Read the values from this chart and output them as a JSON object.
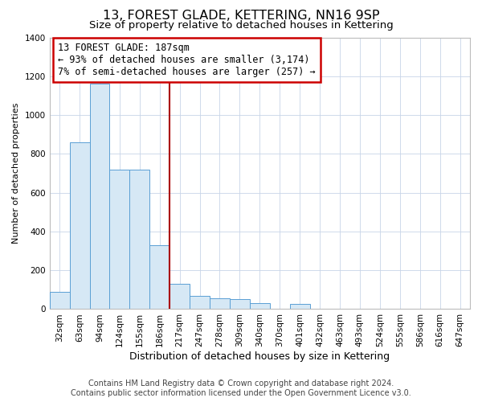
{
  "title": "13, FOREST GLADE, KETTERING, NN16 9SP",
  "subtitle": "Size of property relative to detached houses in Kettering",
  "xlabel": "Distribution of detached houses by size in Kettering",
  "ylabel": "Number of detached properties",
  "categories": [
    "32sqm",
    "63sqm",
    "94sqm",
    "124sqm",
    "155sqm",
    "186sqm",
    "217sqm",
    "247sqm",
    "278sqm",
    "309sqm",
    "340sqm",
    "370sqm",
    "401sqm",
    "432sqm",
    "463sqm",
    "493sqm",
    "524sqm",
    "555sqm",
    "586sqm",
    "616sqm",
    "647sqm"
  ],
  "values": [
    90,
    860,
    1160,
    720,
    720,
    330,
    130,
    70,
    55,
    50,
    30,
    0,
    25,
    0,
    0,
    0,
    0,
    0,
    0,
    0,
    0
  ],
  "bar_color": "#d6e8f5",
  "bar_edge_color": "#5a9fd4",
  "vline_color": "#aa0000",
  "annotation_text": "13 FOREST GLADE: 187sqm\n← 93% of detached houses are smaller (3,174)\n7% of semi-detached houses are larger (257) →",
  "annotation_box_color": "#cc0000",
  "ylim": [
    0,
    1400
  ],
  "yticks": [
    0,
    200,
    400,
    600,
    800,
    1000,
    1200,
    1400
  ],
  "footer_line1": "Contains HM Land Registry data © Crown copyright and database right 2024.",
  "footer_line2": "Contains public sector information licensed under the Open Government Licence v3.0.",
  "bg_color": "#ffffff",
  "grid_color": "#c8d4e8",
  "title_fontsize": 11.5,
  "subtitle_fontsize": 9.5,
  "xlabel_fontsize": 9,
  "ylabel_fontsize": 8,
  "tick_fontsize": 7.5,
  "footer_fontsize": 7,
  "annot_fontsize": 8.5
}
